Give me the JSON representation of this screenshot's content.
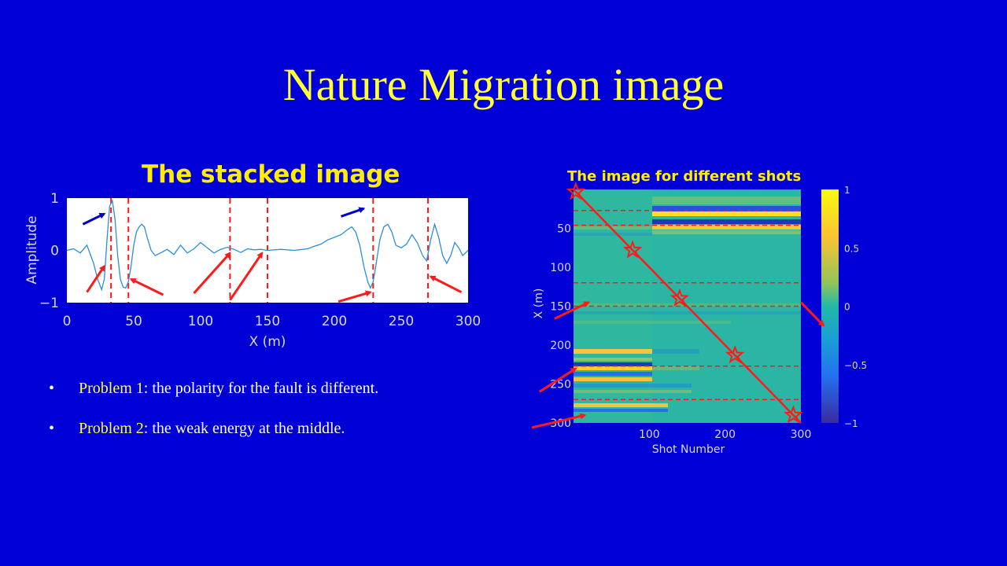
{
  "slide": {
    "title": "Nature Migration image",
    "bullets": [
      {
        "highlight": "Problem 1",
        "rest": ": the polarity for the fault is different."
      },
      {
        "highlight": "Problem 2",
        "rest": ": the weak energy at  the middle."
      }
    ]
  },
  "colors": {
    "background": "#0000d6",
    "title": "#ffff33",
    "arrow_red": "#ff1a1a",
    "arrow_blue": "#0000c8",
    "trace": "#2b8fd6"
  },
  "chart_data": [
    {
      "type": "line",
      "title": "The stacked image",
      "xlabel": "X (m)",
      "ylabel": "Amplitude",
      "xlim": [
        0,
        300
      ],
      "ylim": [
        -1,
        1
      ],
      "xticks": [
        0,
        50,
        100,
        150,
        200,
        250,
        300
      ],
      "yticks": [
        -1,
        0,
        1
      ],
      "series": [
        {
          "x": [
            0,
            5,
            10,
            15,
            20,
            23,
            26,
            28,
            30,
            32,
            34,
            36,
            38,
            40,
            42,
            44,
            46,
            48,
            50,
            52,
            54,
            56,
            58,
            60,
            63,
            66,
            70,
            75,
            80,
            85,
            90,
            95,
            100,
            105,
            110,
            115,
            120,
            125,
            130,
            135,
            140,
            145,
            150,
            160,
            170,
            180,
            185,
            190,
            195,
            200,
            205,
            210,
            213,
            216,
            219,
            222,
            225,
            227,
            229,
            231,
            234,
            237,
            240,
            243,
            246,
            250,
            254,
            258,
            262,
            266,
            269,
            272,
            275,
            278,
            281,
            284,
            287,
            290,
            293,
            296,
            300
          ],
          "y": [
            0,
            0.03,
            -0.05,
            0.1,
            -0.25,
            -0.55,
            -0.75,
            -0.55,
            0.2,
            0.85,
            0.95,
            0.6,
            -0.1,
            -0.55,
            -0.7,
            -0.72,
            -0.6,
            -0.3,
            0.1,
            0.35,
            0.45,
            0.5,
            0.45,
            0.25,
            0,
            -0.1,
            -0.05,
            0.02,
            -0.08,
            0.1,
            -0.05,
            0.03,
            0.15,
            0.05,
            -0.05,
            0.02,
            0.06,
            0.02,
            -0.04,
            0.03,
            0.01,
            0.02,
            0,
            0.02,
            0,
            0.03,
            0.08,
            0.12,
            0.2,
            0.25,
            0.3,
            0.4,
            0.45,
            0.35,
            0.1,
            -0.3,
            -0.6,
            -0.72,
            -0.6,
            -0.3,
            0.2,
            0.45,
            0.5,
            0.35,
            0.1,
            0.05,
            0.12,
            0.3,
            0.15,
            -0.1,
            -0.2,
            0.2,
            0.5,
            0.25,
            -0.1,
            -0.25,
            -0.1,
            0.15,
            0.05,
            -0.1,
            0
          ]
        }
      ],
      "vlines": [
        33,
        46,
        122,
        150,
        229,
        270
      ],
      "red_arrows": [
        [
          15,
          -0.8,
          28,
          -0.3
        ],
        [
          72,
          -0.85,
          48,
          -0.55
        ],
        [
          95,
          -0.82,
          122,
          -0.05
        ],
        [
          122,
          -0.95,
          146,
          -0.05
        ],
        [
          203,
          -0.98,
          227,
          -0.8
        ],
        [
          295,
          -0.8,
          272,
          -0.5
        ]
      ],
      "blue_arrows": [
        [
          12,
          0.5,
          28,
          0.7
        ],
        [
          205,
          0.65,
          222,
          0.8
        ]
      ]
    },
    {
      "type": "heatmap",
      "title": "The image for different shots",
      "xlabel": "Shot Number",
      "ylabel": "X (m)",
      "xlim": [
        0,
        300
      ],
      "ylim": [
        0,
        300
      ],
      "xticks": [
        100,
        200,
        300
      ],
      "yticks": [
        50,
        100,
        150,
        200,
        250,
        300
      ],
      "colorbar": {
        "ticks": [
          "1",
          "0.5",
          "0",
          "−0.5",
          "−1"
        ],
        "range": [
          -1,
          1
        ]
      },
      "dashed_rows": [
        27,
        46,
        120,
        150,
        227,
        270
      ],
      "star_shots": [
        3,
        78,
        140,
        213,
        290
      ],
      "red_arrows": [
        [
          -25,
          166,
          20,
          145
        ],
        [
          300,
          145,
          330,
          175
        ],
        [
          -45,
          260,
          3,
          230
        ],
        [
          -55,
          306,
          15,
          290
        ]
      ]
    }
  ]
}
